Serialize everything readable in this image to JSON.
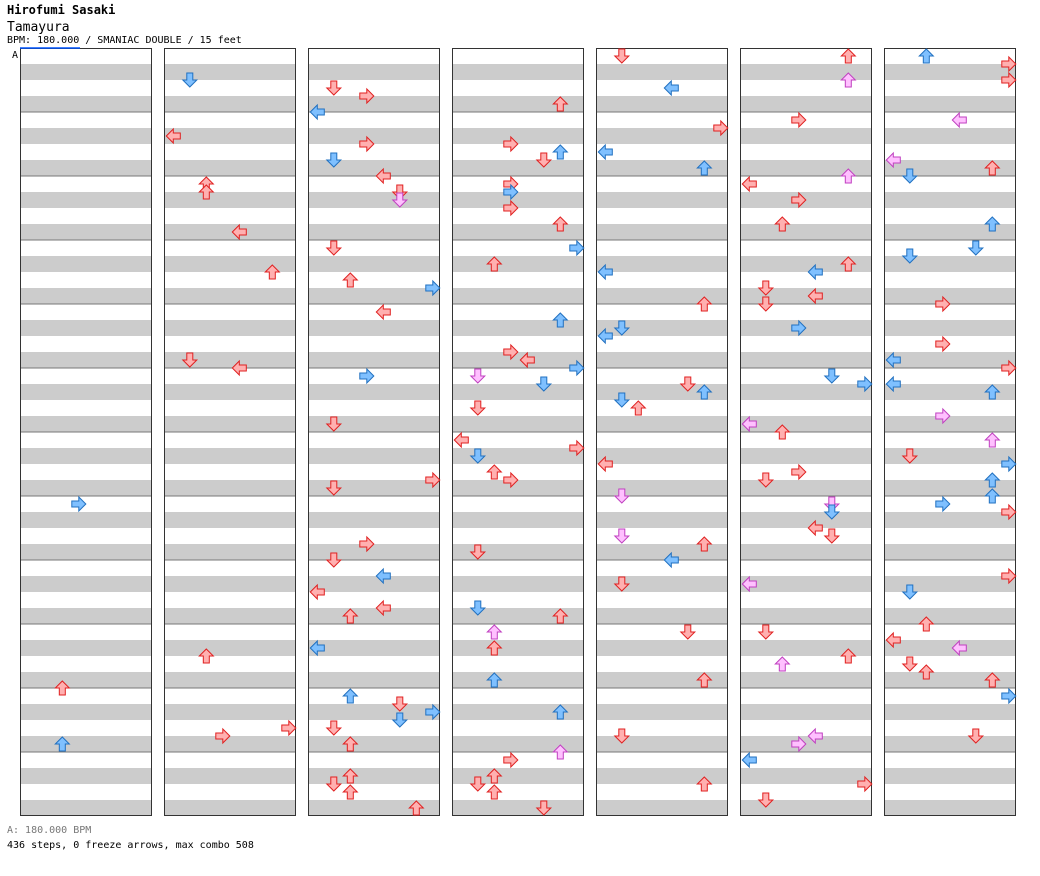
{
  "header": {
    "artist": "Hirofumi Sasaki",
    "title": "Tamayura",
    "info": "BPM: 180.000 / SMANIAC DOUBLE / 15 feet"
  },
  "bpm_marker": {
    "label": "A"
  },
  "footer": {
    "bpm_line": "A: 180.000 BPM",
    "stats": "436 steps, 0 freeze arrows, max combo 508"
  },
  "colors": {
    "stripe_light": "#ffffff",
    "stripe_dark": "#cccccc",
    "column_border": "#333333",
    "measure_line": "#777777",
    "red_arrow": "#ffb0b0",
    "red_arrow_stroke": "#e02020",
    "blue_arrow": "#7fc0ff",
    "blue_arrow_stroke": "#2070c0",
    "pink_arrow": "#ffc0ff",
    "pink_arrow_stroke": "#c040c0",
    "bpm_marker": "#0055ff"
  },
  "chart": {
    "panels": 8,
    "arrow_colors": [
      "red",
      "blue",
      "pink"
    ],
    "directions": [
      "left",
      "down",
      "up",
      "right"
    ]
  }
}
